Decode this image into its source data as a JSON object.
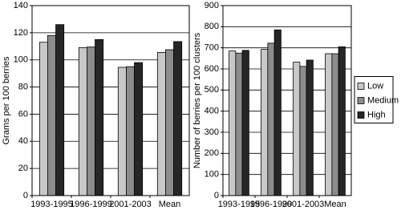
{
  "chart_data": [
    {
      "type": "bar",
      "y_label": "Grams per 100 berries",
      "categories": [
        "1993-1995",
        "1996-1999",
        "2001-2003",
        "Mean"
      ],
      "series": [
        {
          "name": "Low",
          "color": "#c8c8c8",
          "values": [
            113,
            109,
            94.5,
            105.5
          ]
        },
        {
          "name": "Medium",
          "color": "#8c8c8c",
          "values": [
            118,
            109.5,
            95,
            107.5
          ]
        },
        {
          "name": "High",
          "color": "#262626",
          "values": [
            126,
            115,
            98,
            113.5
          ]
        }
      ],
      "ylim": [
        0,
        140
      ],
      "yticks": [
        0,
        20,
        40,
        60,
        80,
        100,
        120,
        140
      ],
      "grid": true,
      "legend": false
    },
    {
      "type": "bar",
      "y_label": "Number of berries per 100 clusters",
      "categories": [
        "1993-1995",
        "1996-1999",
        "2001-2003",
        "Mean"
      ],
      "series": [
        {
          "name": "Low",
          "color": "#c8c8c8",
          "values": [
            685,
            693,
            632,
            672
          ]
        },
        {
          "name": "Medium",
          "color": "#8c8c8c",
          "values": [
            675,
            722,
            612,
            672
          ]
        },
        {
          "name": "High",
          "color": "#262626",
          "values": [
            688,
            785,
            642,
            705
          ]
        }
      ],
      "ylim": [
        0,
        900
      ],
      "yticks": [
        0,
        100,
        200,
        300,
        400,
        500,
        600,
        700,
        800,
        900
      ],
      "grid": true,
      "legend": "right"
    }
  ]
}
